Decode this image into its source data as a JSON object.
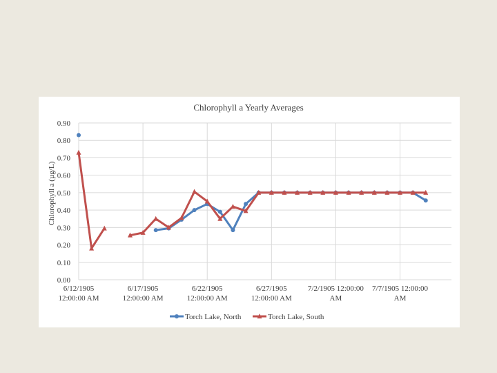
{
  "colors": {
    "background": "#ece9e0",
    "card": "#ffffff",
    "grid": "#d9d9d9",
    "north": "#4f81bd",
    "south": "#c0504d"
  },
  "chart_data": {
    "type": "line",
    "title": "Chlorophyll a Yearly Averages",
    "xlabel": "",
    "ylabel": "Chlorophyll a (µg/L)",
    "ylim": [
      0,
      0.9
    ],
    "yticks": [
      "0.00",
      "0.10",
      "0.20",
      "0.30",
      "0.40",
      "0.50",
      "0.60",
      "0.70",
      "0.80",
      "0.90"
    ],
    "xlim": [
      0,
      29
    ],
    "xticks": [
      {
        "x": 0,
        "line1": "6/12/1905",
        "line2": "12:00:00 AM"
      },
      {
        "x": 5,
        "line1": "6/17/1905",
        "line2": "12:00:00 AM"
      },
      {
        "x": 10,
        "line1": "6/22/1905",
        "line2": "12:00:00 AM"
      },
      {
        "x": 15,
        "line1": "6/27/1905",
        "line2": "12:00:00 AM"
      },
      {
        "x": 20,
        "line1": "7/2/1905 12:00:00",
        "line2": "AM"
      },
      {
        "x": 25,
        "line1": "7/7/1905 12:00:00",
        "line2": "AM"
      }
    ],
    "grid": true,
    "legend_position": "bottom",
    "series": [
      {
        "name": "Torch Lake, North",
        "marker": "circle",
        "color": "#4f81bd",
        "points": [
          [
            0,
            0.83
          ],
          [
            6,
            0.285
          ],
          [
            7,
            0.295
          ],
          [
            8,
            0.345
          ],
          [
            9,
            0.4
          ],
          [
            10,
            0.435
          ],
          [
            11,
            0.39
          ],
          [
            12,
            0.285
          ],
          [
            13,
            0.435
          ],
          [
            14,
            0.5
          ],
          [
            15,
            0.5
          ],
          [
            16,
            0.5
          ],
          [
            17,
            0.5
          ],
          [
            18,
            0.5
          ],
          [
            19,
            0.5
          ],
          [
            20,
            0.5
          ],
          [
            21,
            0.5
          ],
          [
            22,
            0.5
          ],
          [
            23,
            0.5
          ],
          [
            24,
            0.5
          ],
          [
            25,
            0.5
          ],
          [
            26,
            0.5
          ],
          [
            27,
            0.455
          ]
        ]
      },
      {
        "name": "Torch Lake, South",
        "marker": "triangle",
        "color": "#c0504d",
        "points": [
          [
            0,
            0.73
          ],
          [
            1,
            0.18
          ],
          [
            2,
            0.295
          ],
          [
            4,
            0.255
          ],
          [
            5,
            0.27
          ],
          [
            6,
            0.35
          ],
          [
            7,
            0.3
          ],
          [
            8,
            0.355
          ],
          [
            9,
            0.505
          ],
          [
            10,
            0.45
          ],
          [
            11,
            0.35
          ],
          [
            12,
            0.42
          ],
          [
            13,
            0.395
          ],
          [
            14,
            0.5
          ],
          [
            15,
            0.5
          ],
          [
            16,
            0.5
          ],
          [
            17,
            0.5
          ],
          [
            18,
            0.5
          ],
          [
            19,
            0.5
          ],
          [
            20,
            0.5
          ],
          [
            21,
            0.5
          ],
          [
            22,
            0.5
          ],
          [
            23,
            0.5
          ],
          [
            24,
            0.5
          ],
          [
            25,
            0.5
          ],
          [
            26,
            0.5
          ],
          [
            27,
            0.5
          ]
        ]
      }
    ]
  }
}
